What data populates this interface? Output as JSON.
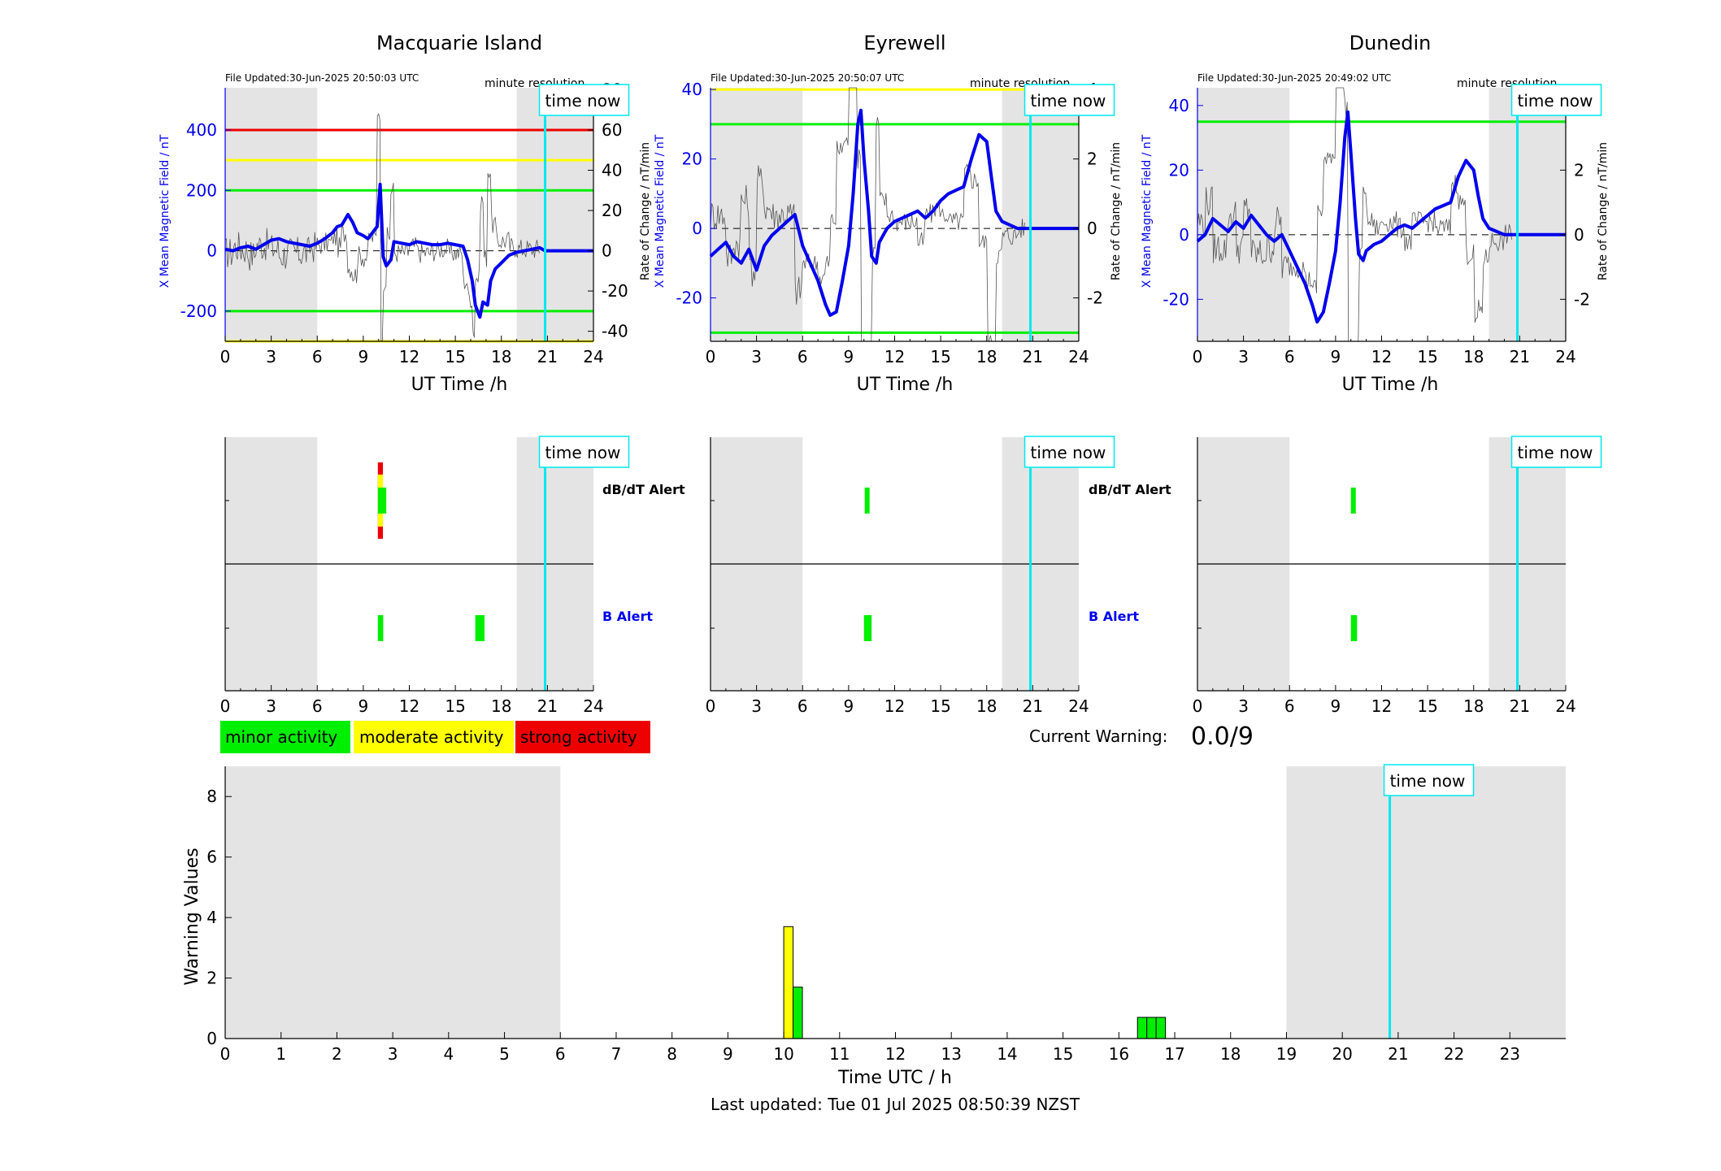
{
  "colors": {
    "blue": "#0000ee",
    "cyan": "#00e8ee",
    "green": "#00ee00",
    "yellow": "#ffff00",
    "red": "#ee0000",
    "shade": "#e4e4e4",
    "trace": "#555555"
  },
  "footer": {
    "last_updated": "Last updated: Tue 01 Jul 2025 08:50:39 NZST"
  },
  "current_warning": {
    "label": "Current Warning:",
    "value": "0.0/9"
  },
  "legend": [
    {
      "label": "minor activity",
      "color": "#00ee00"
    },
    {
      "label": "moderate activity",
      "color": "#ffff00"
    },
    {
      "label": "strong activity",
      "color": "#ee0000"
    }
  ],
  "labels": {
    "time_now": "time now",
    "minute_resolution": "minute resolution",
    "ut_time": "UT Time /h",
    "y_left": "X Mean Magnetic Field / nT",
    "y_right": "Rate of Change / nT/min",
    "dbdt_alert": "dB/dT Alert",
    "b_alert": "B Alert"
  },
  "chart_data": [
    {
      "type": "line",
      "title": "Macquarie Island",
      "file_updated": "File Updated:30-Jun-2025 20:50:03 UTC",
      "xlabel": "UT Time /h",
      "ylabel": "X Mean Magnetic Field / nT",
      "y2label": "Rate of Change / nT/min",
      "xlim": [
        0,
        24
      ],
      "xticks": [
        0,
        3,
        6,
        9,
        12,
        15,
        18,
        21,
        24
      ],
      "ylim": [
        -300,
        540
      ],
      "yticks": [
        -200,
        0,
        200,
        400
      ],
      "y2lim": [
        -45,
        81
      ],
      "y2ticks": [
        -40,
        -20,
        0,
        20,
        40,
        60,
        80
      ],
      "time_now": 20.85,
      "shaded": [
        [
          0,
          6
        ],
        [
          19,
          24
        ]
      ],
      "thresholds": [
        {
          "value": 400,
          "color": "#ee0000"
        },
        {
          "value": 300,
          "color": "#ffff00"
        },
        {
          "value": 200,
          "color": "#00ee00"
        },
        {
          "value": -200,
          "color": "#00ee00"
        },
        {
          "value": -300,
          "color": "#ffff00"
        }
      ],
      "series": [
        {
          "x": [
            0,
            0.5,
            1,
            1.5,
            2,
            2.5,
            3,
            3.5,
            4,
            4.5,
            5,
            5.5,
            6,
            6.5,
            7,
            7.3,
            7.6,
            8,
            8.3,
            8.6,
            9,
            9.3,
            9.6,
            9.9,
            10.1,
            10.3,
            10.5,
            10.8,
            11,
            11.5,
            12,
            12.5,
            13,
            13.5,
            14,
            14.5,
            15,
            15.5,
            15.8,
            16.1,
            16.3,
            16.6,
            16.8,
            17.1,
            17.3,
            17.6,
            18,
            18.5,
            19,
            19.5,
            20,
            20.5,
            20.85,
            24
          ],
          "y": [
            5,
            0,
            10,
            15,
            5,
            20,
            35,
            40,
            30,
            25,
            20,
            15,
            25,
            40,
            60,
            80,
            85,
            120,
            95,
            60,
            50,
            40,
            60,
            80,
            220,
            -20,
            -50,
            -30,
            30,
            25,
            20,
            30,
            25,
            20,
            20,
            25,
            20,
            15,
            -30,
            -100,
            -180,
            -220,
            -170,
            -180,
            -100,
            -60,
            -40,
            -15,
            -5,
            0,
            5,
            10,
            0,
            0
          ]
        }
      ]
    },
    {
      "type": "line",
      "title": "Eyrewell",
      "file_updated": "File Updated:30-Jun-2025 20:50:07 UTC",
      "xlabel": "UT Time /h",
      "ylabel": "X Mean Magnetic Field / nT",
      "y2label": "Rate of Change / nT/min",
      "xlim": [
        0,
        24
      ],
      "xticks": [
        0,
        3,
        6,
        9,
        12,
        15,
        18,
        21,
        24
      ],
      "ylim": [
        -32.5,
        40.5
      ],
      "yticks": [
        -20,
        0,
        20,
        40
      ],
      "y2lim": [
        -3.25,
        4.05
      ],
      "y2ticks": [
        -2,
        0,
        2,
        4
      ],
      "time_now": 20.85,
      "shaded": [
        [
          0,
          6
        ],
        [
          19,
          24
        ]
      ],
      "thresholds": [
        {
          "value": 40,
          "color": "#ffff00"
        },
        {
          "value": 30,
          "color": "#00ee00"
        },
        {
          "value": -30,
          "color": "#00ee00"
        }
      ],
      "series": [
        {
          "x": [
            0,
            0.5,
            1,
            1.5,
            2,
            2.5,
            3,
            3.5,
            4,
            4.5,
            5,
            5.5,
            6,
            6.5,
            7,
            7.5,
            7.8,
            8.2,
            8.6,
            9,
            9.3,
            9.6,
            9.8,
            10,
            10.3,
            10.5,
            10.8,
            11,
            11.5,
            12,
            12.5,
            13,
            13.5,
            14,
            14.5,
            15,
            15.5,
            16,
            16.5,
            17,
            17.5,
            18,
            18.3,
            18.6,
            19,
            19.5,
            20,
            20.85,
            24
          ],
          "y": [
            -8,
            -6,
            -4,
            -8,
            -10,
            -6,
            -12,
            -5,
            -2,
            0,
            2,
            4,
            -5,
            -10,
            -15,
            -22,
            -25,
            -24,
            -15,
            -5,
            10,
            30,
            34,
            20,
            5,
            -8,
            -10,
            -4,
            0,
            2,
            3,
            4,
            5,
            3,
            5,
            8,
            10,
            11,
            12,
            20,
            27,
            25,
            15,
            5,
            2,
            1,
            0,
            0,
            0
          ]
        }
      ]
    },
    {
      "type": "line",
      "title": "Dunedin",
      "file_updated": "File Updated:30-Jun-2025 20:49:02 UTC",
      "xlabel": "UT Time /h",
      "ylabel": "X Mean Magnetic Field / nT",
      "y2label": "Rate of Change / nT/min",
      "xlim": [
        0,
        24
      ],
      "xticks": [
        0,
        3,
        6,
        9,
        12,
        15,
        18,
        21,
        24
      ],
      "ylim": [
        -33,
        45.5
      ],
      "yticks": [
        -20,
        0,
        20,
        40
      ],
      "y2lim": [
        -3.3,
        4.55
      ],
      "y2ticks": [
        -2,
        0,
        2,
        4
      ],
      "time_now": 20.85,
      "shaded": [
        [
          0,
          6
        ],
        [
          19,
          24
        ]
      ],
      "thresholds": [
        {
          "value": 35,
          "color": "#00ee00"
        }
      ],
      "series": [
        {
          "x": [
            0,
            0.5,
            1,
            1.5,
            2,
            2.5,
            3,
            3.5,
            4,
            4.5,
            5,
            5.5,
            6,
            6.5,
            7,
            7.5,
            7.8,
            8.2,
            8.6,
            9,
            9.3,
            9.6,
            9.8,
            10,
            10.3,
            10.5,
            10.8,
            11,
            11.5,
            12,
            12.5,
            13,
            13.5,
            14,
            14.5,
            15,
            15.5,
            16,
            16.5,
            17,
            17.5,
            18,
            18.3,
            18.6,
            19,
            19.5,
            20,
            20.85,
            24
          ],
          "y": [
            -2,
            0,
            5,
            3,
            1,
            4,
            2,
            6,
            3,
            0,
            -2,
            0,
            -5,
            -10,
            -15,
            -22,
            -27,
            -24,
            -15,
            -5,
            10,
            30,
            38,
            25,
            5,
            -6,
            -8,
            -5,
            -3,
            -2,
            0,
            2,
            3,
            2,
            4,
            6,
            8,
            9,
            10,
            18,
            23,
            20,
            12,
            5,
            2,
            1,
            0,
            0,
            0
          ]
        }
      ]
    },
    {
      "type": "bar",
      "xlim": [
        0,
        24
      ],
      "time_now": 20.85,
      "shaded": [
        [
          0,
          6
        ],
        [
          19,
          24
        ]
      ],
      "rows": [
        "dB/dT Alert",
        "B Alert"
      ],
      "alerts": [
        {
          "station": "Macquarie Island",
          "dbdt": [
            {
              "start": 9.95,
              "end": 10.5,
              "level": 3
            }
          ],
          "b": [
            {
              "start": 9.95,
              "end": 10.3,
              "level": 1
            },
            {
              "start": 16.3,
              "end": 16.9,
              "level": 1
            }
          ]
        },
        {
          "station": "Eyrewell",
          "dbdt": [
            {
              "start": 10.05,
              "end": 10.35,
              "level": 1
            }
          ],
          "b": [
            {
              "start": 10.0,
              "end": 10.5,
              "level": 1
            }
          ]
        },
        {
          "station": "Dunedin",
          "dbdt": [
            {
              "start": 10.0,
              "end": 10.3,
              "level": 1
            }
          ],
          "b": [
            {
              "start": 10.0,
              "end": 10.4,
              "level": 1
            }
          ]
        }
      ]
    },
    {
      "type": "bar",
      "xlabel": "Time UTC / h",
      "ylabel": "Warning Values",
      "xlim": [
        0,
        24
      ],
      "xticks": [
        0,
        1,
        2,
        3,
        4,
        5,
        6,
        7,
        8,
        9,
        10,
        11,
        12,
        13,
        14,
        15,
        16,
        17,
        18,
        19,
        20,
        21,
        22,
        23
      ],
      "ylim": [
        0,
        9
      ],
      "yticks": [
        0,
        2,
        4,
        6,
        8
      ],
      "time_now": 20.85,
      "shaded": [
        [
          0,
          6
        ],
        [
          19,
          24
        ]
      ],
      "bars": [
        {
          "x": 10.0,
          "value": 3.7,
          "color": "#ffff00"
        },
        {
          "x": 10.167,
          "value": 1.7,
          "color": "#00ee00"
        },
        {
          "x": 16.333,
          "value": 0.7,
          "color": "#00ee00"
        },
        {
          "x": 16.5,
          "value": 0.7,
          "color": "#00ee00"
        },
        {
          "x": 16.667,
          "value": 0.7,
          "color": "#00ee00"
        }
      ],
      "bar_width": 0.167
    }
  ]
}
